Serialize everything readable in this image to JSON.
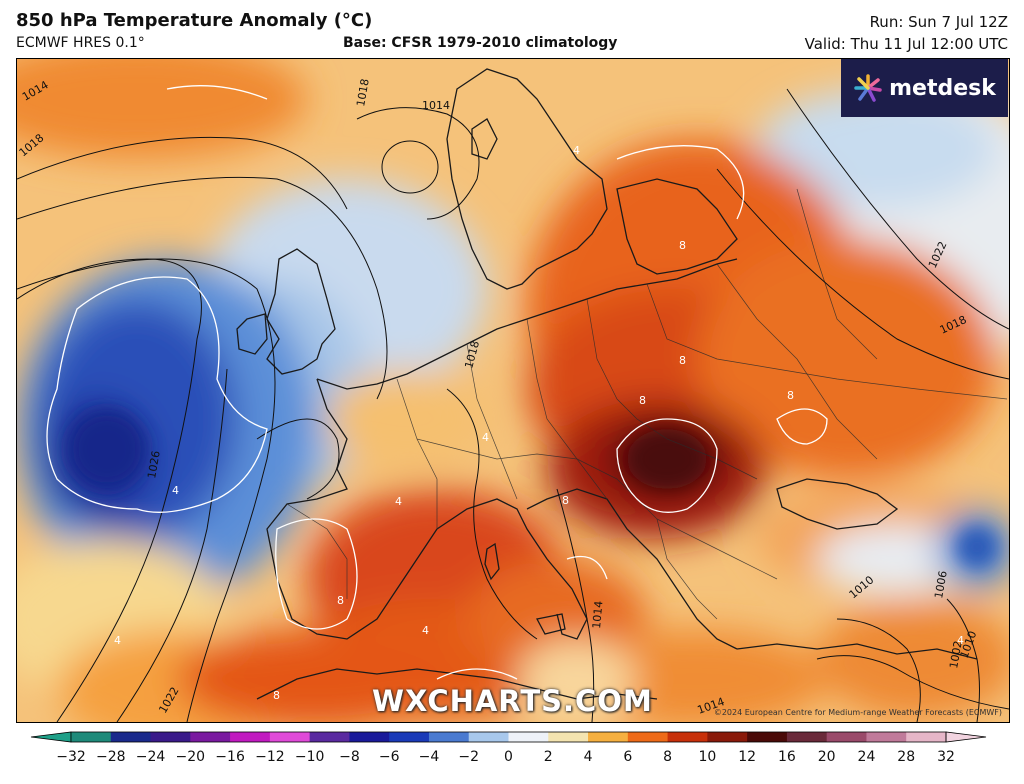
{
  "header": {
    "title": "850 hPa Temperature Anomaly (°C)",
    "model": "ECMWF HRES 0.1°",
    "base": "Base: CFSR 1979-2010 climatology",
    "run": "Run: Sun 7 Jul 12Z",
    "valid": "Valid: Thu 11 Jul 12:00 UTC"
  },
  "branding": {
    "logo_text": "metdesk",
    "watermark": "WXCHARTS.COM",
    "copyright": "©2024 European Centre for Medium-range Weather Forecasts (ECMWF)"
  },
  "isobar_labels": [
    "1014",
    "1018",
    "1018",
    "1014",
    "1022",
    "1018",
    "1026",
    "1022",
    "1018",
    "1014",
    "1014",
    "1010",
    "1010",
    "1006",
    "1002"
  ],
  "anomaly_labels": [
    "4",
    "4",
    "8",
    "8",
    "8",
    "8",
    "8",
    "4",
    "4",
    "8",
    "4",
    "4",
    "8",
    "4"
  ],
  "colorbar": {
    "ticks": [
      "−32",
      "−28",
      "−24",
      "−20",
      "−16",
      "−12",
      "−10",
      "−8",
      "−6",
      "−4",
      "−2",
      "0",
      "2",
      "4",
      "6",
      "8",
      "10",
      "12",
      "16",
      "20",
      "24",
      "28",
      "32"
    ],
    "colors": [
      "#1e8a7a",
      "#1a2a8c",
      "#3a1a8a",
      "#7a1aa0",
      "#c11ac0",
      "#e04ad8",
      "#5a2aa0",
      "#1a1a9a",
      "#1a3ab8",
      "#4a7ad0",
      "#a8c8ec",
      "#eef2f8",
      "#f4e4b0",
      "#f6b040",
      "#ee6a18",
      "#c8300a",
      "#8a1a0a",
      "#4a0a08",
      "#6a2a3a",
      "#9a4a6a",
      "#c07a9a",
      "#e6b6c8"
    ]
  }
}
